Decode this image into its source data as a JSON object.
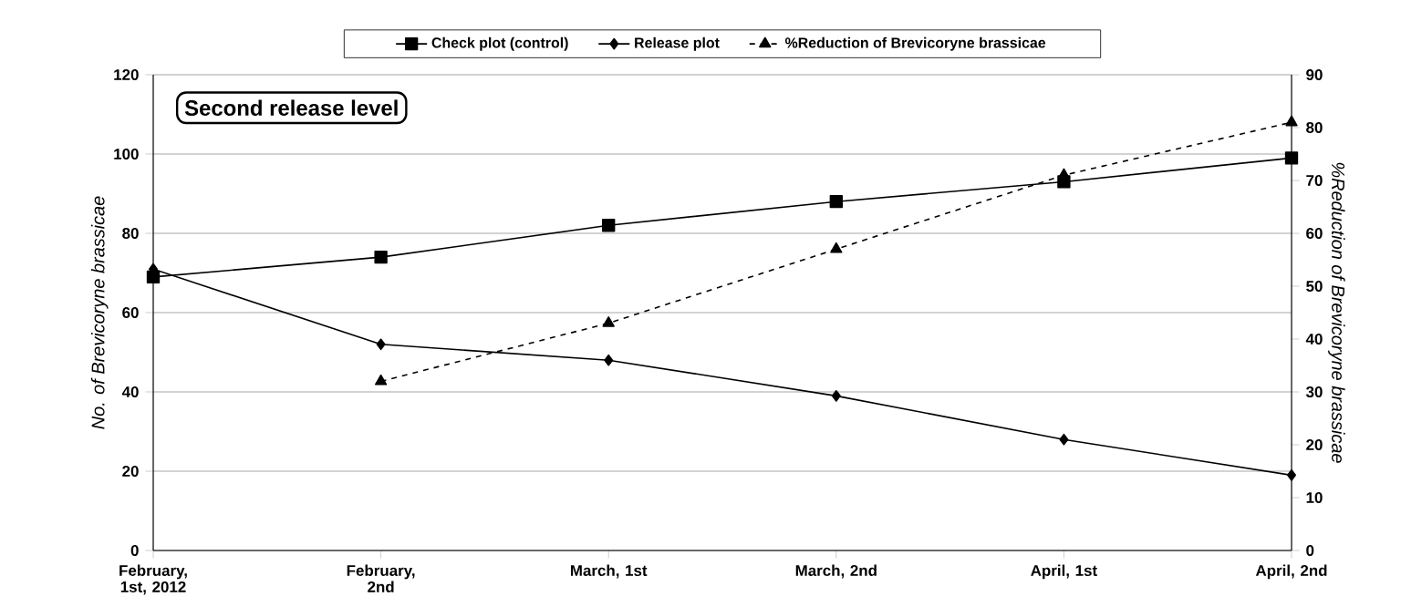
{
  "chart_data": {
    "type": "line",
    "categories": [
      "February, 1st, 2012",
      "February, 2nd",
      "March, 1st",
      "March, 2nd",
      "April, 1st",
      "April, 2nd"
    ],
    "series": [
      {
        "name": "Check plot (control)",
        "color": "#000000",
        "marker": "square",
        "line_style": "solid",
        "values": [
          69,
          74,
          82,
          88,
          93,
          99
        ]
      },
      {
        "name": "Release plot",
        "color": "#000000",
        "marker": "diamond",
        "line_style": "solid",
        "values": [
          71,
          52,
          48,
          39,
          28,
          19
        ]
      },
      {
        "name": "%Reduction of Brevicoryne brassicae",
        "color": "#000000",
        "marker": "triangle",
        "line_style": "dashed",
        "axis": "y2",
        "values": [
          null,
          32,
          43,
          57,
          71,
          81
        ]
      }
    ],
    "ylabel": "No. of *Brevicoryne brassicae*",
    "y2label": "%Reduction of *Brevicoryne brassicae*",
    "ylim": [
      0,
      120
    ],
    "yticks": [
      0,
      20,
      40,
      60,
      80,
      100,
      120
    ],
    "y2lim": [
      0,
      90
    ],
    "y2ticks": [
      0,
      10,
      20,
      30,
      40,
      50,
      60,
      70,
      80,
      90
    ],
    "grid": "y",
    "legend": "top",
    "annotations": [
      "Second release level"
    ]
  }
}
